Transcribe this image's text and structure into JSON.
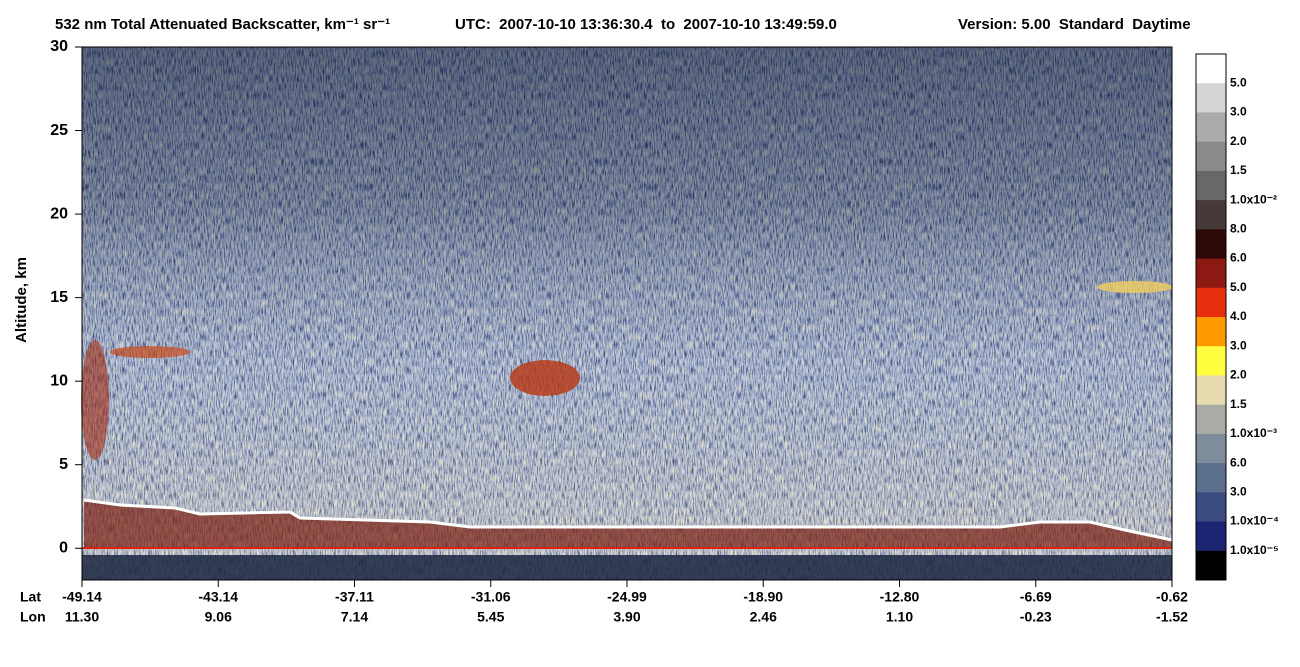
{
  "chart_data": {
    "type": "heatmap",
    "title": "532 nm Total Attenuated Backscatter, km⁻¹ sr⁻¹",
    "subtitle": "UTC:  2007-10-10 13:36:30.4  to  2007-10-10 13:49:59.0",
    "version": "Version: 5.00  Standard  Daytime",
    "y_label": "Altitude, km",
    "ylim": [
      -1.9,
      30
    ],
    "yticks": [
      0,
      5,
      10,
      15,
      20,
      25,
      30
    ],
    "x_rows": [
      {
        "name": "Lat",
        "labels": [
          "-49.14",
          "-43.14",
          "-37.11",
          "-31.06",
          "-24.99",
          "-18.90",
          "-12.80",
          "-6.69",
          "-0.62"
        ]
      },
      {
        "name": "Lon",
        "labels": [
          "11.30",
          "9.06",
          "7.14",
          "5.45",
          "3.90",
          "2.46",
          "1.10",
          "-0.23",
          "-1.52"
        ]
      }
    ],
    "colorbar": {
      "colors": [
        "#ffffff",
        "#d6d6d6",
        "#ababab",
        "#8a8a8a",
        "#686868",
        "#453a37",
        "#2c0806",
        "#8c1a12",
        "#e8300f",
        "#ff9a00",
        "#ffff40",
        "#e9dbb0",
        "#a9aca6",
        "#7f8c9b",
        "#5a6e8e",
        "#394b80",
        "#1b2470",
        "#000000"
      ],
      "labels": [
        "5.0",
        "3.0",
        "2.0",
        "1.5",
        "1.0x10⁻²",
        "8.0",
        "6.0",
        "5.0",
        "4.0",
        "3.0",
        "2.0",
        "1.5",
        "1.0x10⁻³",
        "6.0",
        "3.0",
        "1.0x10⁻⁴",
        "1.0x10⁻⁵"
      ]
    }
  }
}
